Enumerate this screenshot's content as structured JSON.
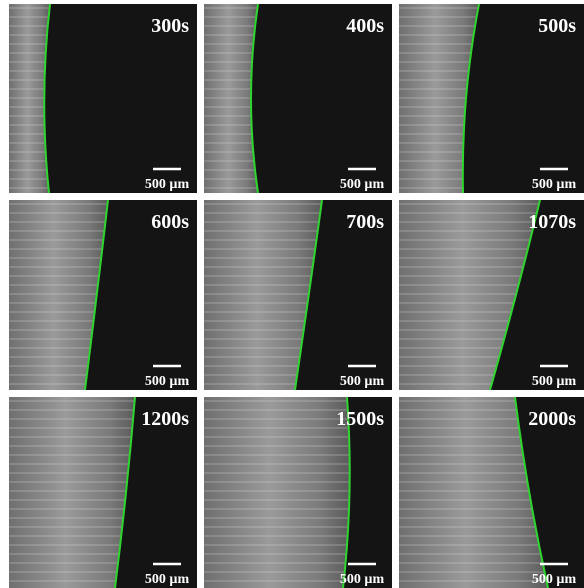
{
  "panels": [
    {
      "time": "300s",
      "scale": "500 µm"
    },
    {
      "time": "400s",
      "scale": "500 µm"
    },
    {
      "time": "500s",
      "scale": "500 µm"
    },
    {
      "time": "600s",
      "scale": "500 µm"
    },
    {
      "time": "700s",
      "scale": "500 µm"
    },
    {
      "time": "1070s",
      "scale": "500 µm"
    },
    {
      "time": "1200s",
      "scale": "500 µm"
    },
    {
      "time": "1500s",
      "scale": "500 µm"
    },
    {
      "time": "2000s",
      "scale": "500 µm"
    }
  ]
}
